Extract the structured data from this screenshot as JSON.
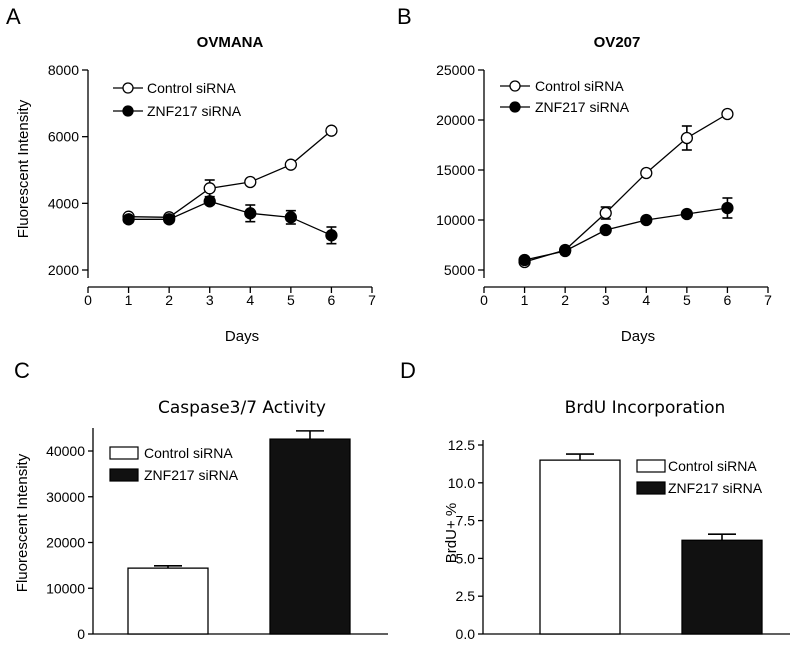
{
  "chart_data": [
    {
      "panel": "A",
      "type": "line",
      "title": "OVMANA",
      "xlabel": "Days",
      "ylabel": "Fluorescent Intensity",
      "xlim": [
        0,
        7
      ],
      "ylim": [
        1500,
        8000
      ],
      "x_ticks": [
        0,
        1,
        2,
        3,
        4,
        5,
        6,
        7
      ],
      "y_ticks": [
        2000,
        4000,
        6000,
        8000
      ],
      "x": [
        1,
        2,
        3,
        4,
        5,
        6
      ],
      "series": [
        {
          "name": "Control siRNA",
          "marker": "open-circle",
          "values": [
            3600,
            3580,
            4450,
            4640,
            5160,
            6180
          ],
          "errors": [
            0,
            0,
            250,
            0,
            0,
            0
          ]
        },
        {
          "name": "ZNF217 siRNA",
          "marker": "filled-circle",
          "values": [
            3520,
            3520,
            4060,
            3700,
            3580,
            3040
          ],
          "errors": [
            0,
            0,
            0,
            250,
            200,
            250
          ]
        }
      ]
    },
    {
      "panel": "B",
      "type": "line",
      "title": "OV207",
      "xlabel": "Days",
      "ylabel": "",
      "xlim": [
        0,
        7
      ],
      "ylim": [
        3000,
        25000
      ],
      "x_ticks": [
        0,
        1,
        2,
        3,
        4,
        5,
        6,
        7
      ],
      "y_ticks": [
        5000,
        10000,
        15000,
        20000,
        25000
      ],
      "x": [
        1,
        2,
        3,
        4,
        5,
        6
      ],
      "series": [
        {
          "name": "Control siRNA",
          "marker": "open-circle",
          "values": [
            5800,
            7000,
            10700,
            14700,
            18200,
            20600
          ],
          "errors": [
            0,
            0,
            600,
            0,
            1200,
            0
          ]
        },
        {
          "name": "ZNF217 siRNA",
          "marker": "filled-circle",
          "values": [
            6000,
            6900,
            9000,
            10000,
            10600,
            11200
          ],
          "errors": [
            0,
            0,
            0,
            0,
            0,
            1000
          ]
        }
      ]
    },
    {
      "panel": "C",
      "type": "bar",
      "title": "Caspase3/7 Activity",
      "xlabel": "",
      "ylabel": "Fluorescent Intensity",
      "ylim": [
        0,
        46000
      ],
      "y_ticks": [
        0,
        10000,
        20000,
        30000,
        40000
      ],
      "categories": [
        "Control siRNA",
        "ZNF217 siRNA"
      ],
      "values": [
        14400,
        42600
      ],
      "errors": [
        500,
        1800
      ],
      "fills": [
        "#ffffff",
        "#111111"
      ]
    },
    {
      "panel": "D",
      "type": "bar",
      "title": "BrdU Incorporation",
      "xlabel": "",
      "ylabel": "BrdU+ %",
      "ylim": [
        0,
        12.5
      ],
      "y_ticks": [
        0.0,
        2.5,
        5.0,
        7.5,
        10.0,
        12.5
      ],
      "y_tick_labels": [
        "0.0",
        "2.5",
        "5.0",
        "7.5",
        "10.0",
        "12.5"
      ],
      "categories": [
        "Control siRNA",
        "ZNF217 siRNA"
      ],
      "values": [
        11.5,
        6.2
      ],
      "errors": [
        0.4,
        0.4
      ],
      "fills": [
        "#ffffff",
        "#111111"
      ]
    }
  ]
}
